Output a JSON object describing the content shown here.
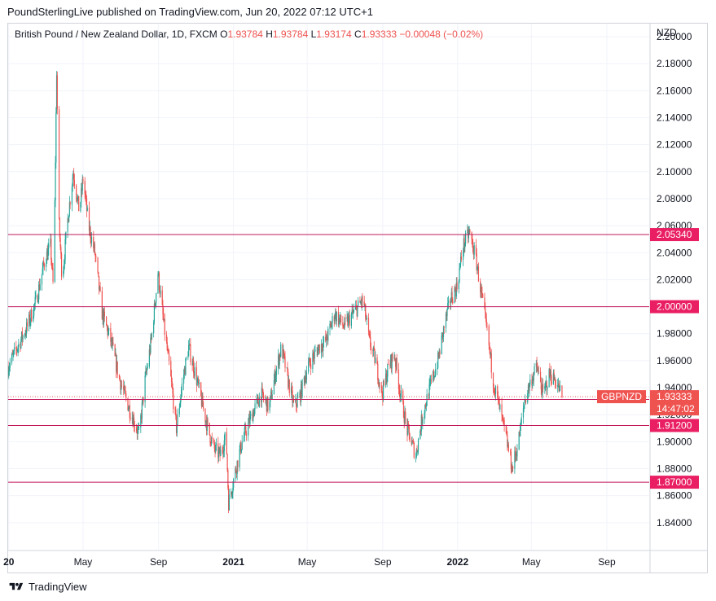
{
  "publisher_line": "PoundSterlingLive published on TradingView.com, Jun 20, 2022 07:12 UTC+1",
  "legend": {
    "symbol": "British Pound / New Zealand Dollar, 1D, FXCM",
    "open_label": "O",
    "open": "1.93784",
    "high_label": "H",
    "high": "1.93784",
    "low_label": "L",
    "low": "1.93174",
    "close_label": "C",
    "close": "1.93333",
    "change": "−0.00048 (−0.02%)"
  },
  "currency": "NZD",
  "footer": {
    "brand": "TradingView",
    "logo_icon": "tradingview-logo-icon"
  },
  "colors": {
    "up": "#26a69a",
    "down": "#ef5350",
    "level_line": "#c2185b",
    "level_label": "#e91e63",
    "symbol_label": "#ef5350"
  },
  "chart_data": {
    "type": "candlestick",
    "title": "British Pound / New Zealand Dollar, 1D, FXCM",
    "ylim": [
      1.82,
      2.2
    ],
    "y_ticks": [
      "1.84000",
      "1.86000",
      "1.88000",
      "1.90000",
      "1.92000",
      "1.94000",
      "1.96000",
      "1.98000",
      "2.00000",
      "2.02000",
      "2.04000",
      "2.06000",
      "2.08000",
      "2.10000",
      "2.12000",
      "2.14000",
      "2.16000",
      "2.18000",
      "2.20000"
    ],
    "x_range": [
      "2019-12-31",
      "2022-11-09"
    ],
    "x_ticks": [
      {
        "date": "2020-01-01",
        "label": "20",
        "bold": true
      },
      {
        "date": "2020-05-01",
        "label": "May",
        "bold": false
      },
      {
        "date": "2020-09-01",
        "label": "Sep",
        "bold": false
      },
      {
        "date": "2021-01-01",
        "label": "2021",
        "bold": true
      },
      {
        "date": "2021-05-01",
        "label": "May",
        "bold": false
      },
      {
        "date": "2021-09-01",
        "label": "Sep",
        "bold": false
      },
      {
        "date": "2022-01-01",
        "label": "2022",
        "bold": true
      },
      {
        "date": "2022-05-01",
        "label": "May",
        "bold": false
      },
      {
        "date": "2022-09-01",
        "label": "Sep",
        "bold": false
      }
    ],
    "horizontal_levels": [
      {
        "value": 2.0534,
        "label": "2.05340",
        "x_start": "2019-12-31"
      },
      {
        "value": 2.0,
        "label": "2.00000",
        "x_start": "2019-12-31"
      },
      {
        "value": 1.93128,
        "label": "1.93128",
        "x_start": "2019-12-31"
      },
      {
        "value": 1.912,
        "label": "1.91200",
        "x_start": "2019-12-31"
      },
      {
        "value": 1.87,
        "label": "1.87000",
        "x_start": "2019-12-31"
      }
    ],
    "last_price": {
      "value": 1.93333,
      "label": "1.93333",
      "countdown": "14:47:02",
      "symbol": "GBPNZD"
    },
    "price_path": [
      [
        "2019-12-31",
        1.955
      ],
      [
        "2020-01-15",
        1.97
      ],
      [
        "2020-01-31",
        1.985
      ],
      [
        "2020-02-15",
        2.005
      ],
      [
        "2020-02-29",
        2.035
      ],
      [
        "2020-03-09",
        2.045
      ],
      [
        "2020-03-14",
        2.01
      ],
      [
        "2020-03-19",
        2.175
      ],
      [
        "2020-03-23",
        2.06
      ],
      [
        "2020-03-28",
        2.02
      ],
      [
        "2020-04-05",
        2.06
      ],
      [
        "2020-04-15",
        2.1
      ],
      [
        "2020-04-25",
        2.07
      ],
      [
        "2020-05-01",
        2.095
      ],
      [
        "2020-05-10",
        2.06
      ],
      [
        "2020-05-20",
        2.04
      ],
      [
        "2020-06-01",
        1.995
      ],
      [
        "2020-06-15",
        1.975
      ],
      [
        "2020-06-30",
        1.945
      ],
      [
        "2020-07-15",
        1.925
      ],
      [
        "2020-07-31",
        1.905
      ],
      [
        "2020-08-10",
        1.945
      ],
      [
        "2020-08-20",
        1.975
      ],
      [
        "2020-08-31",
        2.025
      ],
      [
        "2020-09-10",
        1.985
      ],
      [
        "2020-09-20",
        1.95
      ],
      [
        "2020-09-30",
        1.91
      ],
      [
        "2020-10-10",
        1.945
      ],
      [
        "2020-10-20",
        1.97
      ],
      [
        "2020-10-31",
        1.95
      ],
      [
        "2020-11-10",
        1.93
      ],
      [
        "2020-11-20",
        1.91
      ],
      [
        "2020-11-30",
        1.895
      ],
      [
        "2020-12-10",
        1.89
      ],
      [
        "2020-12-20",
        1.905
      ],
      [
        "2020-12-24",
        1.855
      ],
      [
        "2021-01-05",
        1.88
      ],
      [
        "2021-01-15",
        1.9
      ],
      [
        "2021-01-31",
        1.92
      ],
      [
        "2021-02-15",
        1.935
      ],
      [
        "2021-02-28",
        1.925
      ],
      [
        "2021-03-10",
        1.95
      ],
      [
        "2021-03-20",
        1.97
      ],
      [
        "2021-03-31",
        1.945
      ],
      [
        "2021-04-10",
        1.925
      ],
      [
        "2021-04-20",
        1.935
      ],
      [
        "2021-05-01",
        1.955
      ],
      [
        "2021-05-20",
        1.97
      ],
      [
        "2021-06-01",
        1.975
      ],
      [
        "2021-06-15",
        1.995
      ],
      [
        "2021-06-30",
        1.985
      ],
      [
        "2021-07-15",
        1.995
      ],
      [
        "2021-07-31",
        2.005
      ],
      [
        "2021-08-10",
        1.975
      ],
      [
        "2021-08-20",
        1.96
      ],
      [
        "2021-08-31",
        1.935
      ],
      [
        "2021-09-10",
        1.955
      ],
      [
        "2021-09-20",
        1.965
      ],
      [
        "2021-09-30",
        1.935
      ],
      [
        "2021-10-10",
        1.91
      ],
      [
        "2021-10-25",
        1.89
      ],
      [
        "2021-11-05",
        1.92
      ],
      [
        "2021-11-20",
        1.945
      ],
      [
        "2021-11-30",
        1.96
      ],
      [
        "2021-12-10",
        1.985
      ],
      [
        "2021-12-20",
        2.005
      ],
      [
        "2021-12-31",
        2.015
      ],
      [
        "2022-01-10",
        2.045
      ],
      [
        "2022-01-20",
        2.055
      ],
      [
        "2022-01-31",
        2.035
      ],
      [
        "2022-02-10",
        2.005
      ],
      [
        "2022-02-20",
        1.975
      ],
      [
        "2022-02-28",
        1.945
      ],
      [
        "2022-03-10",
        1.925
      ],
      [
        "2022-03-20",
        1.905
      ],
      [
        "2022-03-31",
        1.88
      ],
      [
        "2022-04-10",
        1.9
      ],
      [
        "2022-04-20",
        1.93
      ],
      [
        "2022-04-30",
        1.945
      ],
      [
        "2022-05-10",
        1.955
      ],
      [
        "2022-05-20",
        1.935
      ],
      [
        "2022-05-31",
        1.95
      ],
      [
        "2022-06-10",
        1.945
      ],
      [
        "2022-06-20",
        1.93333
      ]
    ]
  }
}
